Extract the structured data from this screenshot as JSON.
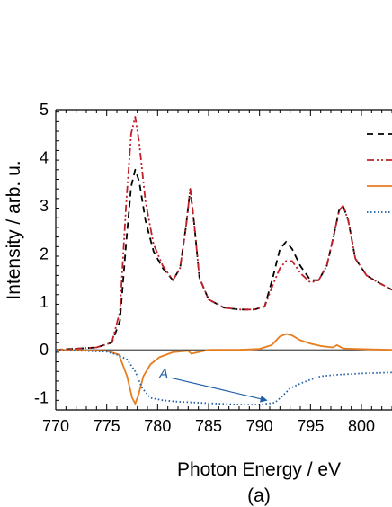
{
  "chart_data": {
    "type": "line",
    "xlabel": "Photon Energy / eV",
    "ylabel": "Intensity / arb. u.",
    "caption": "(a)",
    "xlim": [
      770,
      803
    ],
    "ylim": [
      -1.25,
      5
    ],
    "xticks": [
      770,
      775,
      780,
      785,
      790,
      795,
      800
    ],
    "yticks": [
      -1,
      0,
      1,
      2,
      3,
      4,
      5
    ],
    "x_minor_step": 1,
    "y_minor_step": 0.2,
    "zero_line": 0,
    "grid": false,
    "legend": {
      "placement": "top-right",
      "entries_text": [
        "",
        "",
        "",
        ""
      ]
    },
    "annotation": {
      "text": "A",
      "label_at": [
        780.6,
        -0.47
      ],
      "arrow_to": [
        790.7,
        -1.05
      ],
      "color": "#1f5fa8"
    },
    "series": [
      {
        "color": "#000000",
        "dash": "dashed",
        "x": [
          770,
          774,
          775.5,
          776.3,
          776.9,
          777.4,
          777.8,
          778.2,
          778.8,
          779.6,
          780.5,
          781.5,
          782.2,
          782.8,
          783.2,
          783.6,
          784.1,
          785,
          786.5,
          788,
          789.5,
          790.5,
          791.3,
          792,
          792.6,
          793.2,
          794,
          795,
          795.8,
          796.6,
          797.3,
          797.8,
          798.2,
          798.7,
          799.4,
          800.5,
          801.5,
          803
        ],
        "y": [
          0,
          0.05,
          0.15,
          0.6,
          2.2,
          3.4,
          3.75,
          3.5,
          2.7,
          2.05,
          1.7,
          1.45,
          1.7,
          2.6,
          3.35,
          2.6,
          1.5,
          1.05,
          0.88,
          0.84,
          0.84,
          0.9,
          1.5,
          2.1,
          2.25,
          2.1,
          1.75,
          1.45,
          1.45,
          1.75,
          2.4,
          2.9,
          3.0,
          2.7,
          1.9,
          1.55,
          1.42,
          1.25
        ]
      },
      {
        "color": "#c0202a",
        "dash": "dash-dot-dot",
        "x": [
          770,
          774,
          775.5,
          776.3,
          776.9,
          777.4,
          777.8,
          778.2,
          778.8,
          779.6,
          780.5,
          781.5,
          782.2,
          782.8,
          783.2,
          783.6,
          784.1,
          785,
          786.5,
          788,
          789.5,
          790.5,
          791.3,
          792,
          792.6,
          793.2,
          794,
          795,
          795.8,
          796.6,
          797.3,
          797.8,
          798.2,
          798.7,
          799.4,
          800.5,
          801.5,
          803
        ],
        "y": [
          0,
          0.05,
          0.15,
          0.8,
          3.0,
          4.5,
          4.85,
          4.3,
          3.1,
          2.2,
          1.75,
          1.45,
          1.7,
          2.6,
          3.35,
          2.6,
          1.5,
          1.05,
          0.88,
          0.84,
          0.84,
          0.9,
          1.35,
          1.7,
          1.85,
          1.85,
          1.6,
          1.4,
          1.45,
          1.75,
          2.4,
          2.9,
          3.0,
          2.7,
          1.9,
          1.55,
          1.42,
          1.25
        ]
      },
      {
        "color": "#e87d1e",
        "dash": "solid",
        "x": [
          770,
          775,
          776.2,
          777,
          777.5,
          777.8,
          778.1,
          778.6,
          779.3,
          780.2,
          781.5,
          783,
          783.3,
          785,
          788,
          790,
          791.2,
          792,
          792.6,
          793.2,
          794,
          795,
          796,
          797.2,
          797.6,
          798.2,
          799.5,
          801,
          803
        ],
        "y": [
          0,
          -0.02,
          -0.1,
          -0.55,
          -1.0,
          -1.12,
          -0.95,
          -0.55,
          -0.3,
          -0.15,
          -0.05,
          -0.02,
          -0.08,
          0,
          0,
          0.02,
          0.1,
          0.28,
          0.33,
          0.3,
          0.2,
          0.13,
          0.08,
          0.05,
          0.1,
          0.03,
          0.02,
          0.01,
          0
        ]
      },
      {
        "color": "#1f5fa8",
        "dash": "dotted",
        "x": [
          770,
          775,
          776,
          777,
          777.8,
          778.5,
          779.3,
          780.5,
          782,
          784,
          786,
          788,
          790,
          791.5,
          792.3,
          793,
          794,
          795,
          796,
          797.5,
          800,
          803
        ],
        "y": [
          0,
          -0.04,
          -0.1,
          -0.2,
          -0.45,
          -0.8,
          -1.0,
          -1.05,
          -1.08,
          -1.1,
          -1.12,
          -1.14,
          -1.14,
          -1.1,
          -0.95,
          -0.8,
          -0.7,
          -0.62,
          -0.55,
          -0.52,
          -0.49,
          -0.47
        ]
      }
    ]
  }
}
